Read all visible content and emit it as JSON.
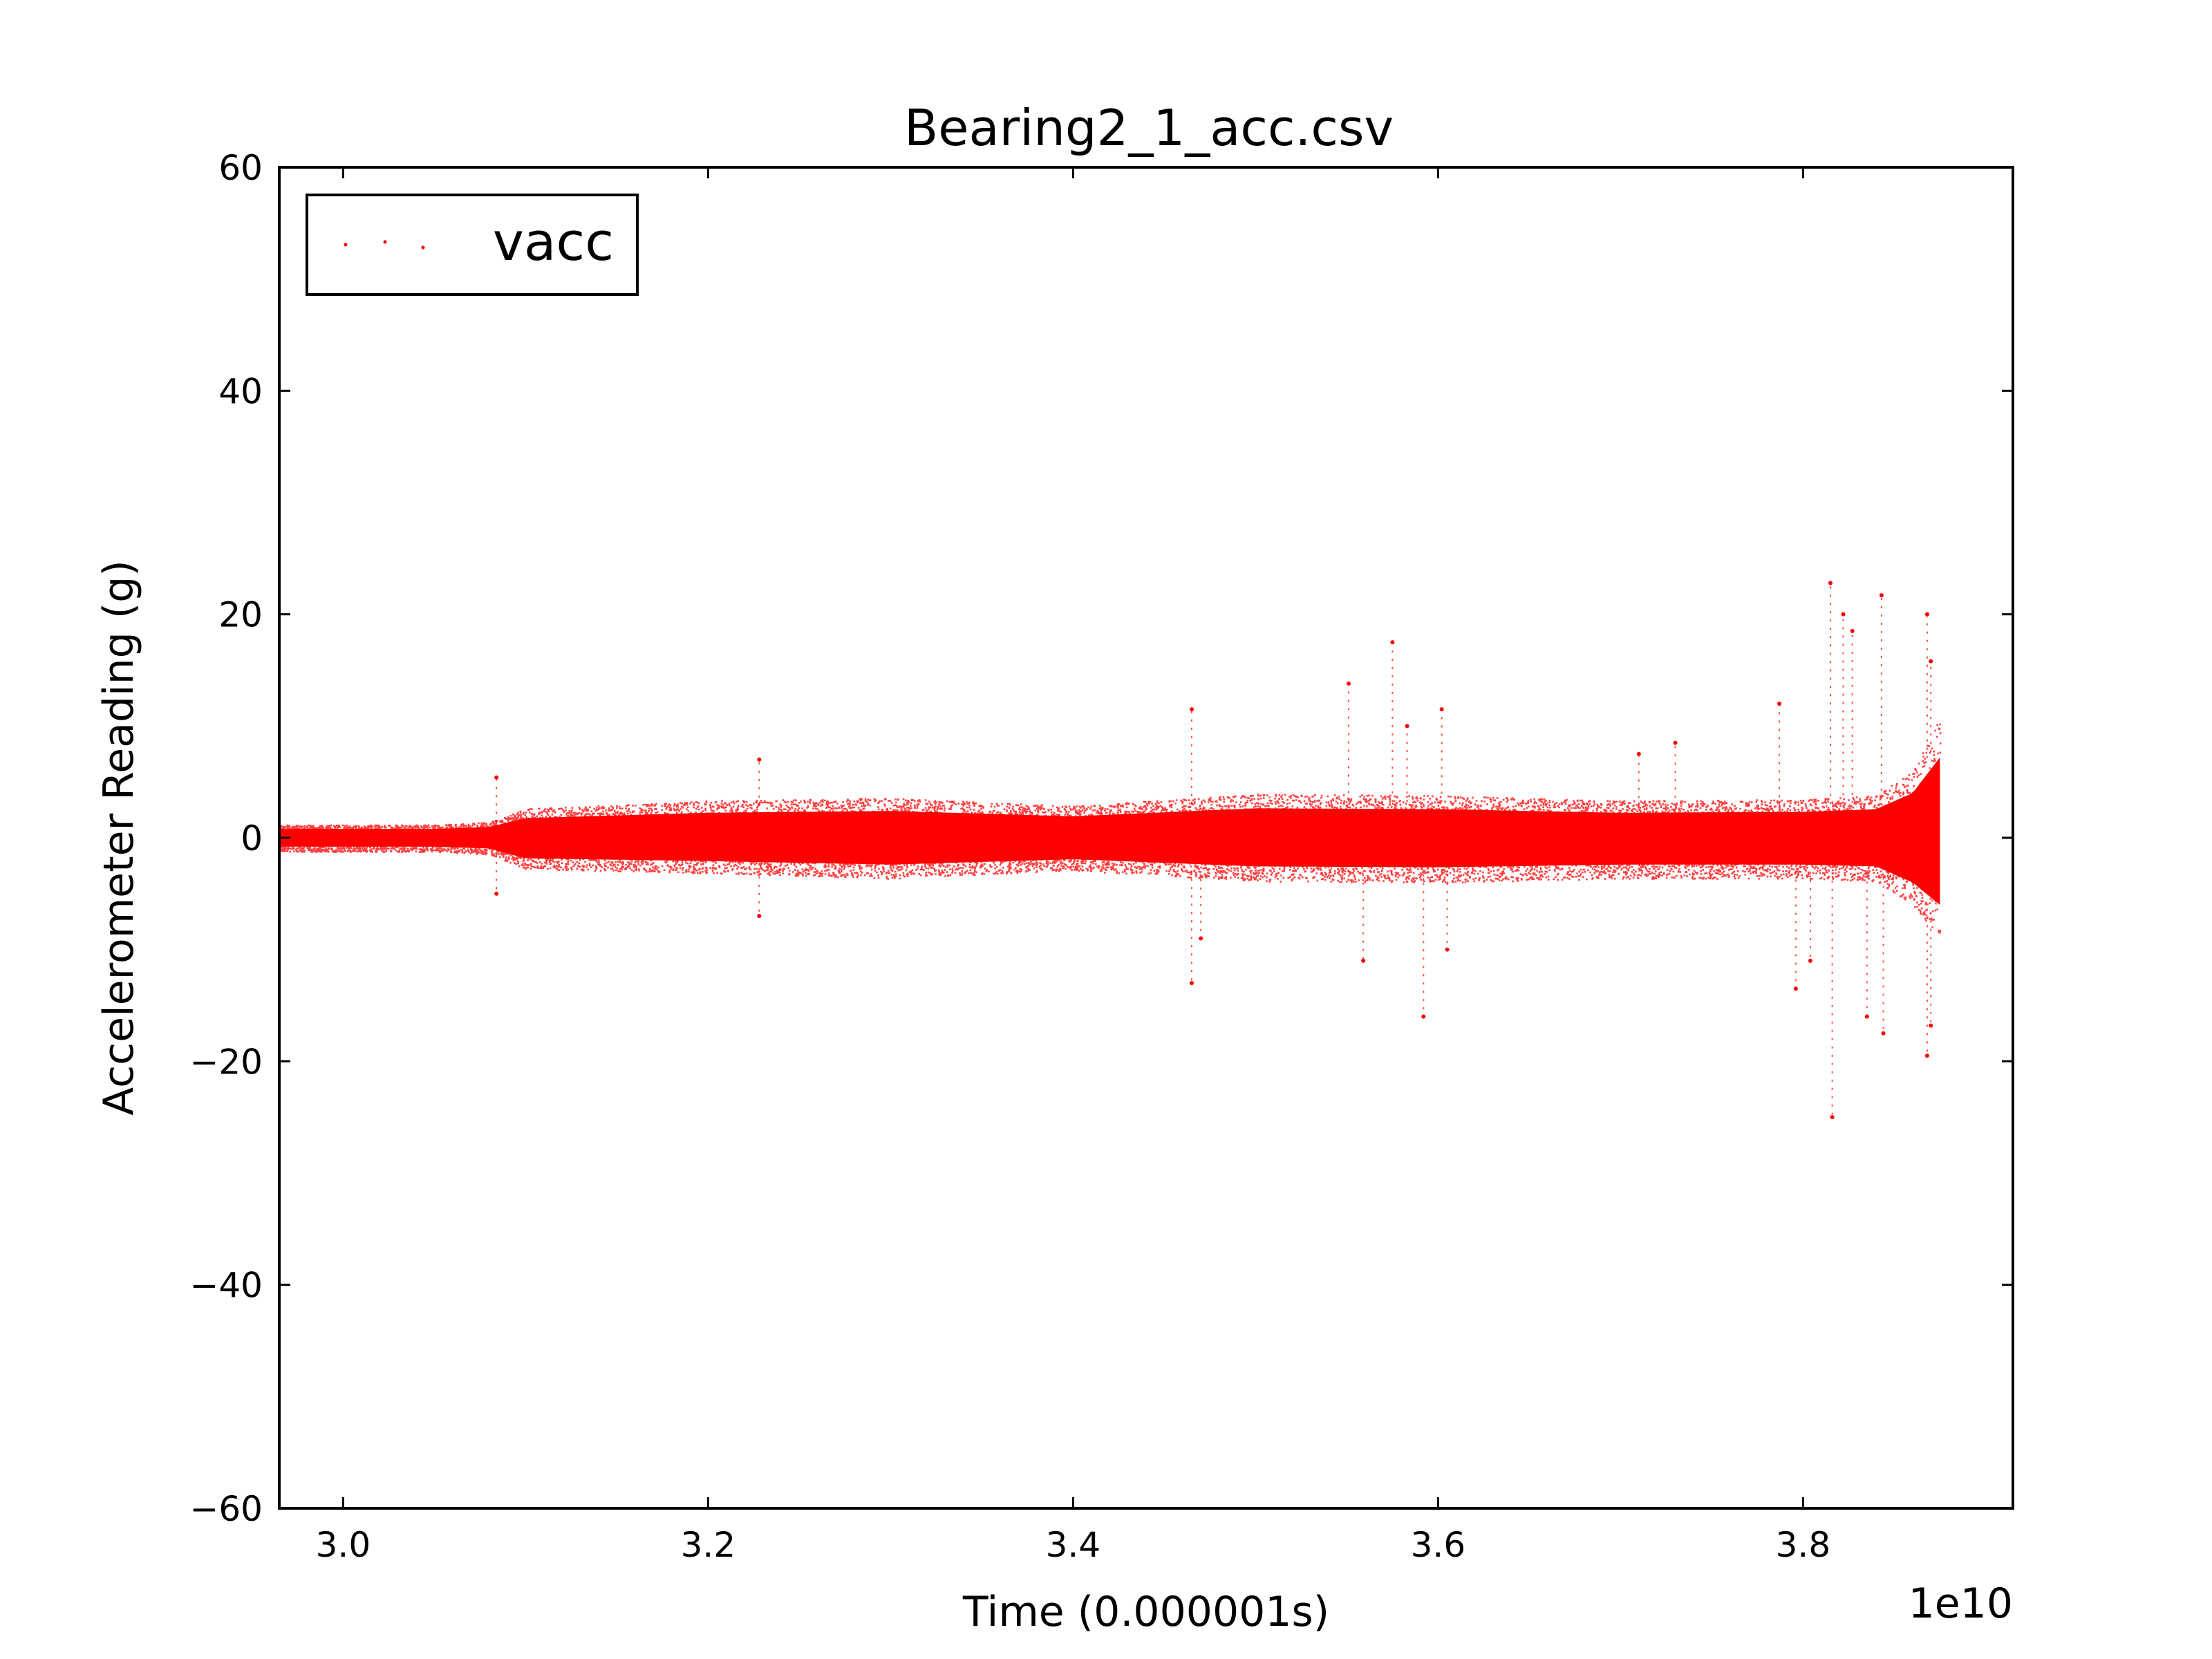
{
  "chart_data": {
    "type": "scatter",
    "title": "Bearing2_1_acc.csv",
    "xlabel": "Time (0.000001s)",
    "ylabel": "Accelerometer Reading (g)",
    "x_offset_label": "1e10",
    "xlim": [
      2.965,
      3.915
    ],
    "ylim": [
      -60,
      60
    ],
    "xticks": [
      3.0,
      3.2,
      3.4,
      3.6,
      3.8
    ],
    "xtick_labels": [
      "3.0",
      "3.2",
      "3.4",
      "3.6",
      "3.8"
    ],
    "yticks": [
      -60,
      -40,
      -20,
      0,
      20,
      40,
      60
    ],
    "ytick_labels": [
      "−60",
      "−40",
      "−20",
      "0",
      "20",
      "40",
      "60"
    ],
    "grid": false,
    "legend_position": "top-left",
    "series": [
      {
        "name": "vacc",
        "color": "#ff0000",
        "x_start": 2.965,
        "x_end": 3.875,
        "envelope": [
          {
            "x": 2.965,
            "low": -1.0,
            "high": 1.0
          },
          {
            "x": 3.05,
            "low": -1.0,
            "high": 1.0
          },
          {
            "x": 3.08,
            "low": -1.2,
            "high": 1.2
          },
          {
            "x": 3.1,
            "low": -2.3,
            "high": 2.2
          },
          {
            "x": 3.2,
            "low": -2.6,
            "high": 2.8
          },
          {
            "x": 3.3,
            "low": -3.0,
            "high": 3.0
          },
          {
            "x": 3.4,
            "low": -2.4,
            "high": 2.4
          },
          {
            "x": 3.5,
            "low": -3.2,
            "high": 3.3
          },
          {
            "x": 3.6,
            "low": -3.3,
            "high": 3.2
          },
          {
            "x": 3.7,
            "low": -3.0,
            "high": 2.8
          },
          {
            "x": 3.8,
            "low": -3.0,
            "high": 2.9
          },
          {
            "x": 3.84,
            "low": -3.2,
            "high": 3.2
          },
          {
            "x": 3.86,
            "low": -5.0,
            "high": 5.0
          },
          {
            "x": 3.875,
            "low": -7.5,
            "high": 9.0
          }
        ],
        "outliers": [
          {
            "x": 3.084,
            "y": 5.4
          },
          {
            "x": 3.084,
            "y": -5.0
          },
          {
            "x": 3.228,
            "y": 7.0
          },
          {
            "x": 3.228,
            "y": -7.0
          },
          {
            "x": 3.465,
            "y": 11.5
          },
          {
            "x": 3.465,
            "y": -13.0
          },
          {
            "x": 3.47,
            "y": -9.0
          },
          {
            "x": 3.551,
            "y": 13.8
          },
          {
            "x": 3.559,
            "y": -11.0
          },
          {
            "x": 3.575,
            "y": 17.5
          },
          {
            "x": 3.583,
            "y": 10.0
          },
          {
            "x": 3.592,
            "y": -16.0
          },
          {
            "x": 3.602,
            "y": 11.5
          },
          {
            "x": 3.605,
            "y": -10.0
          },
          {
            "x": 3.71,
            "y": 7.5
          },
          {
            "x": 3.73,
            "y": 8.5
          },
          {
            "x": 3.787,
            "y": 12.0
          },
          {
            "x": 3.796,
            "y": -13.5
          },
          {
            "x": 3.804,
            "y": -11.0
          },
          {
            "x": 3.815,
            "y": 22.8
          },
          {
            "x": 3.816,
            "y": -25.0
          },
          {
            "x": 3.822,
            "y": 20.0
          },
          {
            "x": 3.827,
            "y": 18.5
          },
          {
            "x": 3.835,
            "y": -16.0
          },
          {
            "x": 3.843,
            "y": 21.7
          },
          {
            "x": 3.844,
            "y": -17.5
          },
          {
            "x": 3.868,
            "y": 20.0
          },
          {
            "x": 3.868,
            "y": -19.5
          },
          {
            "x": 3.87,
            "y": 15.8
          },
          {
            "x": 3.87,
            "y": -16.8
          }
        ]
      }
    ]
  }
}
